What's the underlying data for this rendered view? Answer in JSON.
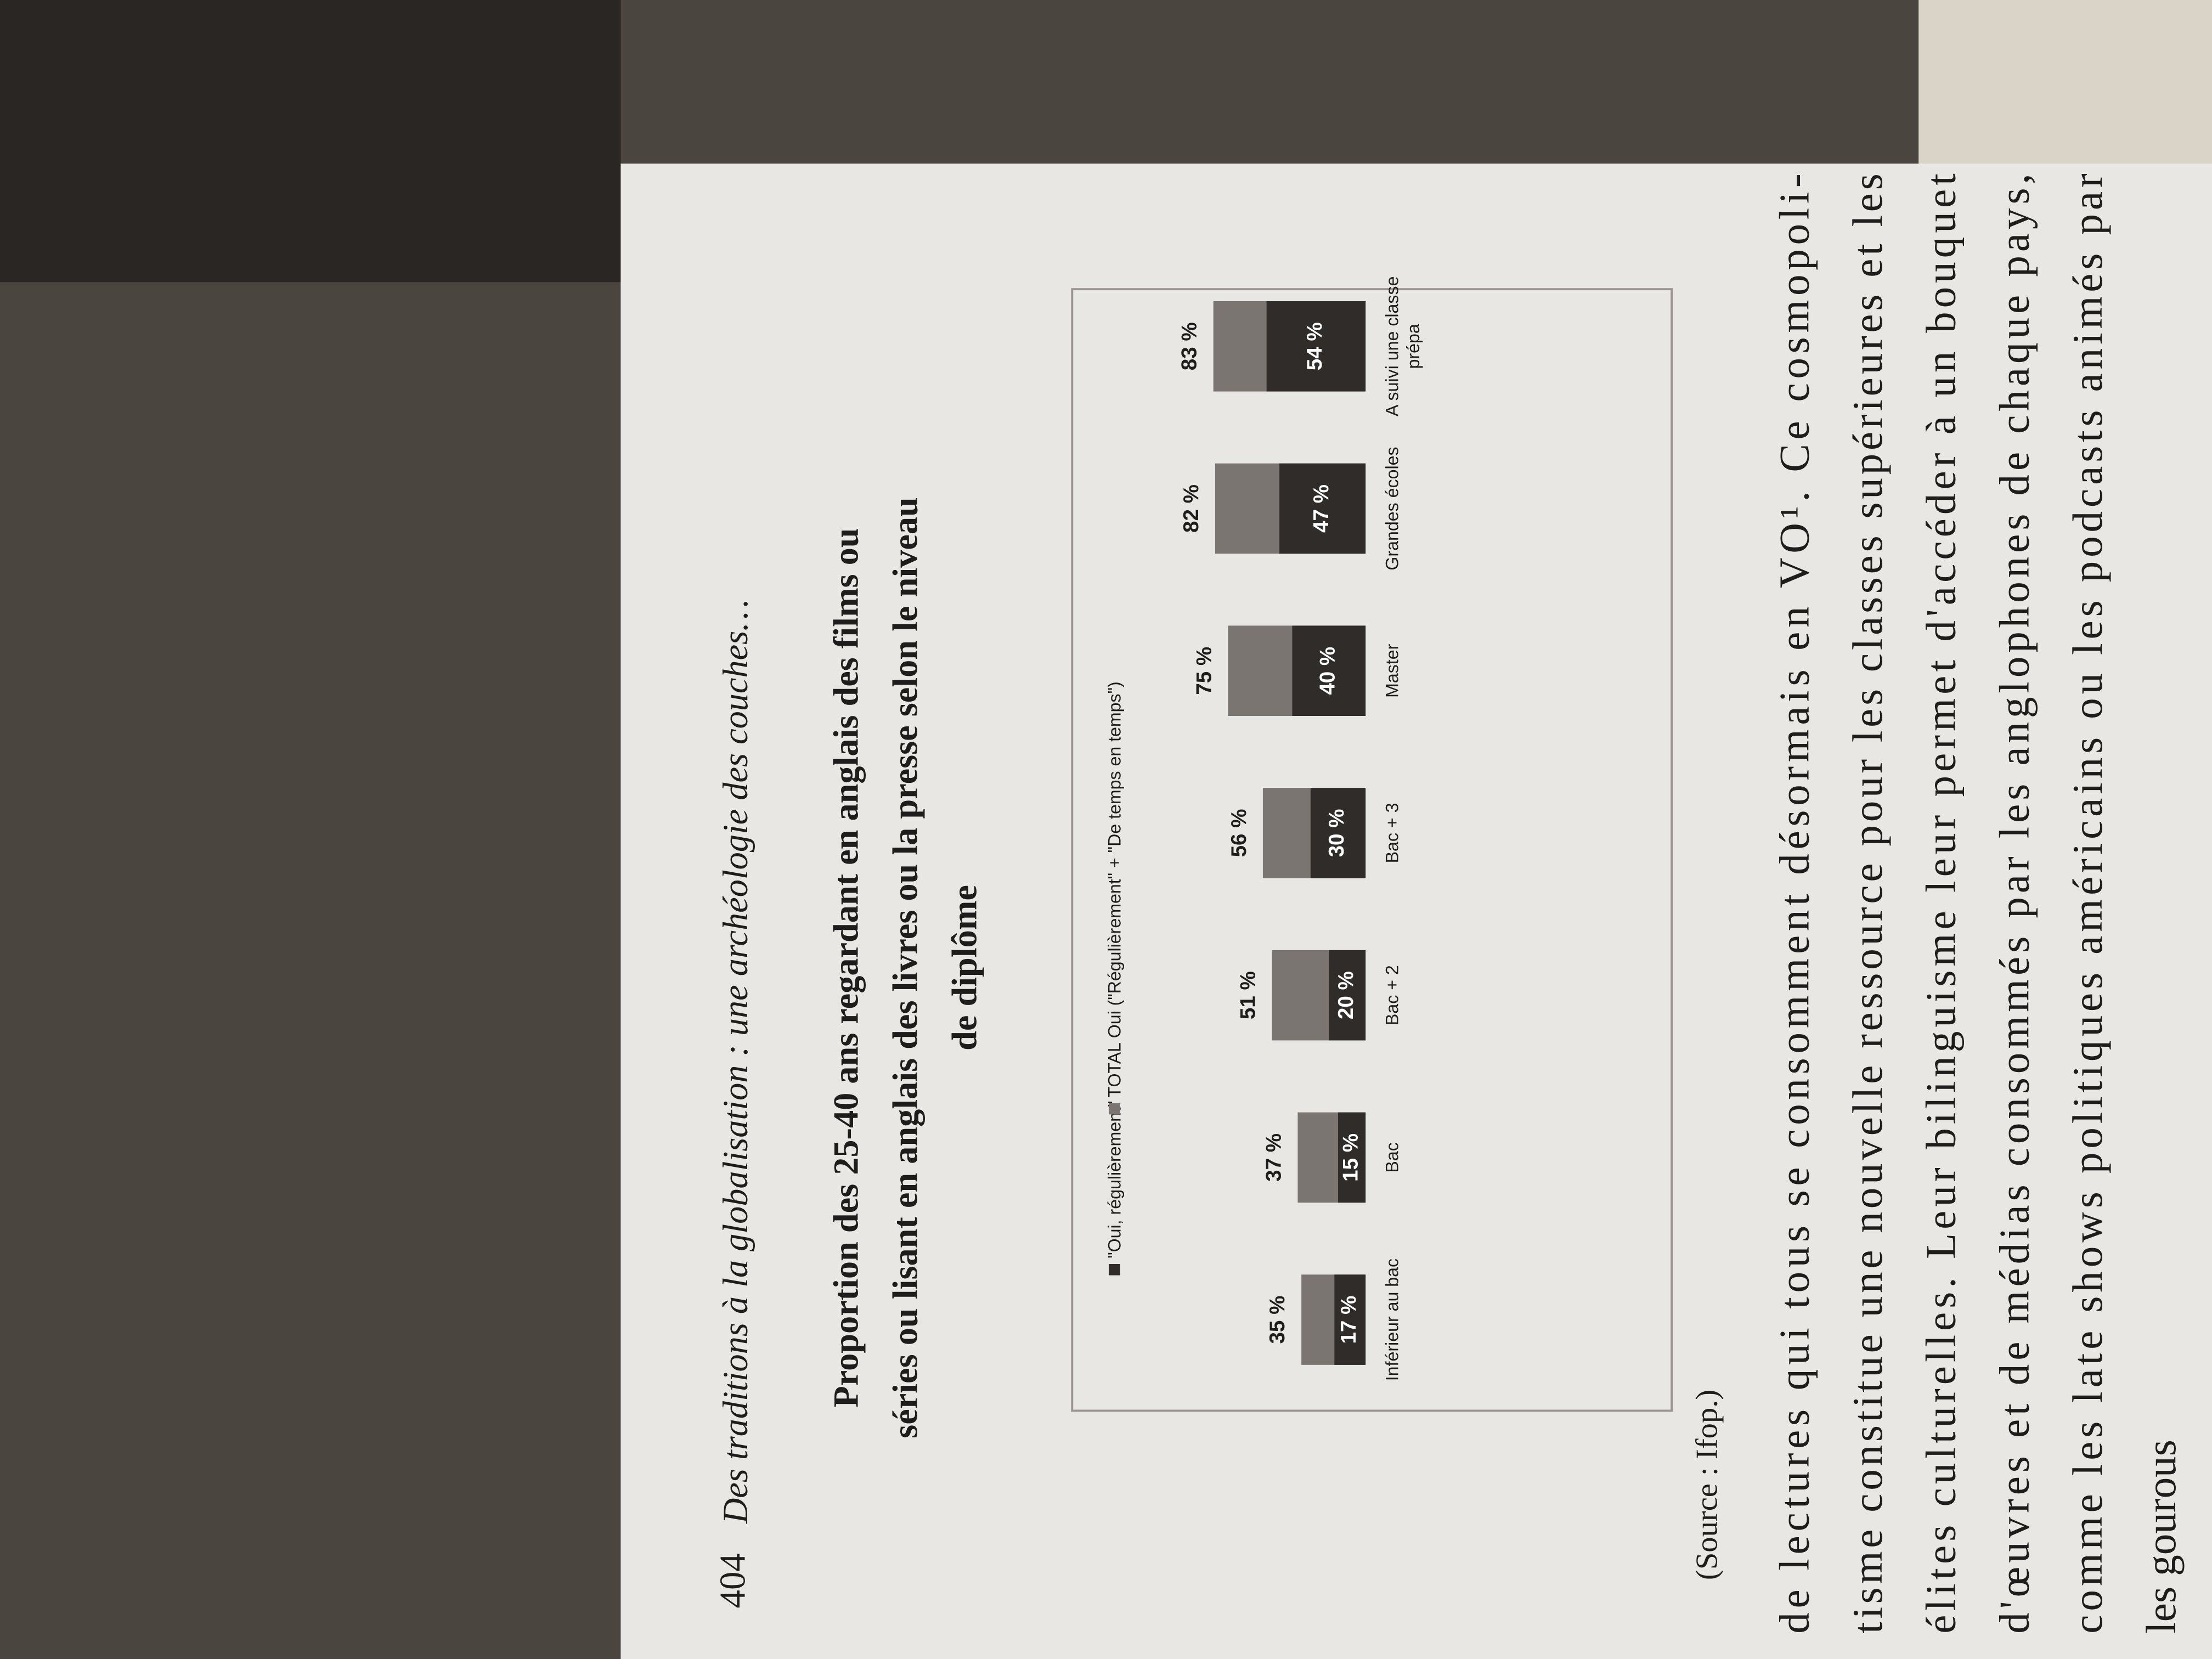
{
  "header": {
    "page_number": "404",
    "running_title": "Des traditions à la globalisation : une archéologie des couches…"
  },
  "chart_data": {
    "type": "bar",
    "title": "Proportion des 25-40 ans regardant en anglais des films ou séries ou lisant en anglais des livres ou la presse selon le niveau de diplôme",
    "categories": [
      "Inférieur au bac",
      "Bac",
      "Bac + 2",
      "Bac + 3",
      "Master",
      "Grandes écoles",
      "A suivi une classe prépa"
    ],
    "series": [
      {
        "name": "\"Oui, régulièrement\"",
        "color": "#2f2c2a",
        "values": [
          17,
          15,
          20,
          30,
          40,
          47,
          54
        ],
        "value_labels": [
          "17 %",
          "15 %",
          "20 %",
          "30 %",
          "40 %",
          "47 %",
          "54 %"
        ]
      },
      {
        "name": "TOTAL Oui (\"Régulièrement\" + \"De temps en temps\")",
        "color": "#7b7571",
        "values": [
          35,
          37,
          51,
          56,
          75,
          82,
          83
        ],
        "value_labels": [
          "35 %",
          "37 %",
          "51 %",
          "56 %",
          "75 %",
          "82 %",
          "83 %"
        ]
      }
    ],
    "source": "(Source : Ifop.)"
  },
  "body": {
    "lines": [
      "de lectures qui tous se consomment désormais en VO¹. Ce cosmopoli-",
      "tisme constitue une nouvelle ressource pour les classes supérieures et les",
      "élites culturelles. Leur bilinguisme leur permet d'accéder à un bouquet",
      "d'œuvres et de médias consommés par les anglophones de chaque pays,",
      "comme les late shows politiques américains ou les podcasts animés par",
      "les gourous"
    ]
  }
}
